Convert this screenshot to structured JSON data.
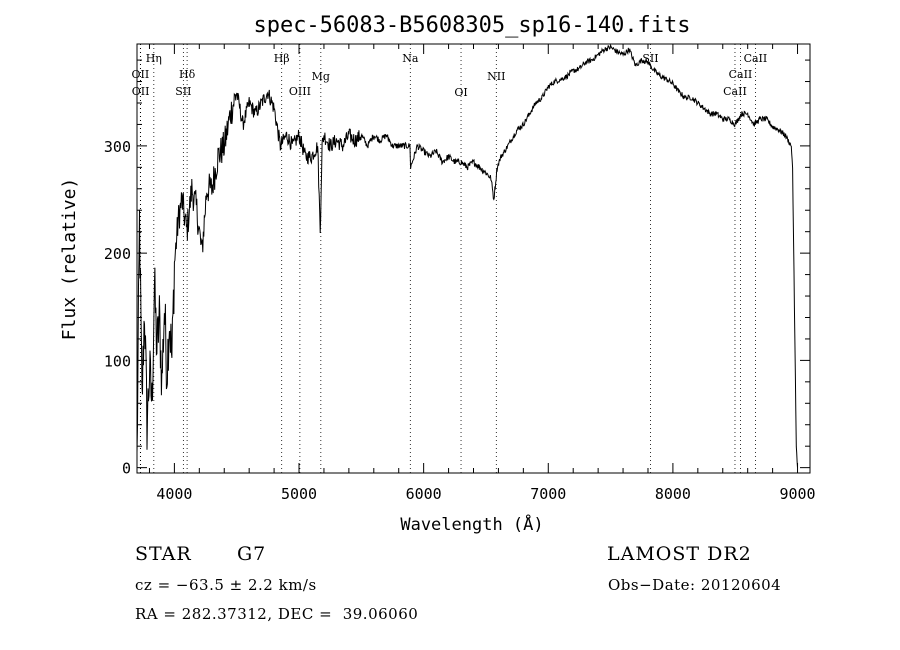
{
  "chart_data": {
    "type": "line",
    "title": "spec-56083-B5608305_sp16-140.fits",
    "xlabel": "Wavelength (Å)",
    "ylabel": "Flux (relative)",
    "xlim": [
      3700,
      9100
    ],
    "ylim": [
      -5,
      395
    ],
    "xticks": [
      4000,
      5000,
      6000,
      7000,
      8000,
      9000
    ],
    "yticks": [
      0,
      100,
      200,
      300
    ],
    "grid": false,
    "series": [
      {
        "x": [
          3700,
          3720,
          3740,
          3760,
          3780,
          3800,
          3820,
          3840,
          3860,
          3880,
          3900,
          3920,
          3940,
          3960,
          3980,
          4000,
          4030,
          4060,
          4100,
          4140,
          4180,
          4220,
          4260,
          4300,
          4350,
          4400,
          4450,
          4500,
          4550,
          4600,
          4650,
          4700,
          4750,
          4800,
          4850,
          4900,
          4950,
          5000,
          5050,
          5100,
          5150,
          5170,
          5185,
          5200,
          5250,
          5300,
          5350,
          5400,
          5450,
          5500,
          5550,
          5600,
          5650,
          5700,
          5750,
          5800,
          5850,
          5890,
          5895,
          5950,
          6000,
          6050,
          6100,
          6150,
          6200,
          6250,
          6300,
          6350,
          6400,
          6450,
          6500,
          6540,
          6563,
          6590,
          6620,
          6650,
          6700,
          6750,
          6800,
          6850,
          6900,
          6950,
          7000,
          7050,
          7100,
          7150,
          7200,
          7250,
          7300,
          7350,
          7400,
          7450,
          7500,
          7550,
          7600,
          7650,
          7700,
          7750,
          7800,
          7850,
          7900,
          7950,
          8000,
          8050,
          8100,
          8150,
          8200,
          8250,
          8300,
          8350,
          8400,
          8450,
          8500,
          8550,
          8600,
          8650,
          8700,
          8750,
          8800,
          8850,
          8900,
          8950,
          8960,
          8975,
          8990,
          9000
        ],
        "y": [
          5,
          230,
          60,
          150,
          40,
          90,
          60,
          170,
          110,
          140,
          80,
          150,
          90,
          140,
          100,
          190,
          230,
          250,
          220,
          260,
          240,
          200,
          260,
          260,
          290,
          300,
          330,
          350,
          320,
          340,
          330,
          340,
          350,
          335,
          300,
          310,
          300,
          310,
          290,
          290,
          300,
          220,
          300,
          310,
          300,
          305,
          300,
          310,
          305,
          310,
          300,
          310,
          305,
          310,
          300,
          300,
          300,
          300,
          280,
          300,
          295,
          290,
          295,
          285,
          290,
          285,
          285,
          280,
          285,
          280,
          275,
          270,
          250,
          280,
          290,
          295,
          305,
          315,
          320,
          330,
          340,
          345,
          355,
          360,
          362,
          365,
          370,
          372,
          378,
          380,
          385,
          390,
          392,
          388,
          385,
          390,
          375,
          380,
          378,
          370,
          365,
          362,
          358,
          350,
          345,
          345,
          340,
          335,
          330,
          330,
          325,
          325,
          320,
          330,
          330,
          320,
          325,
          325,
          318,
          315,
          310,
          300,
          280,
          150,
          20,
          0
        ]
      }
    ],
    "lines": [
      {
        "label": "Hη",
        "x": 3835
      },
      {
        "label": "OII",
        "x": 3727
      },
      {
        "label": "OII",
        "x": 3729
      },
      {
        "label": "Hδ",
        "x": 4102
      },
      {
        "label": "SII",
        "x": 4072
      },
      {
        "label": "Hβ",
        "x": 4861
      },
      {
        "label": "OIII",
        "x": 5007
      },
      {
        "label": "Mg",
        "x": 5175
      },
      {
        "label": "Na",
        "x": 5893
      },
      {
        "label": "OI",
        "x": 6300
      },
      {
        "label": "NII",
        "x": 6583
      },
      {
        "label": "SII",
        "x": 7820
      },
      {
        "label": "CaII",
        "x": 8498
      },
      {
        "label": "CaII",
        "x": 8542
      },
      {
        "label": "CaII",
        "x": 8662
      }
    ]
  },
  "footer": {
    "object_class": "STAR",
    "subclass": "G7",
    "survey": "LAMOST DR2",
    "redshift_text": "cz = −63.5 ± 2.2 km/s",
    "obs_date": "Obs−Date: 20120604",
    "coords": "RA = 282.37312, DEC =  39.06060"
  }
}
